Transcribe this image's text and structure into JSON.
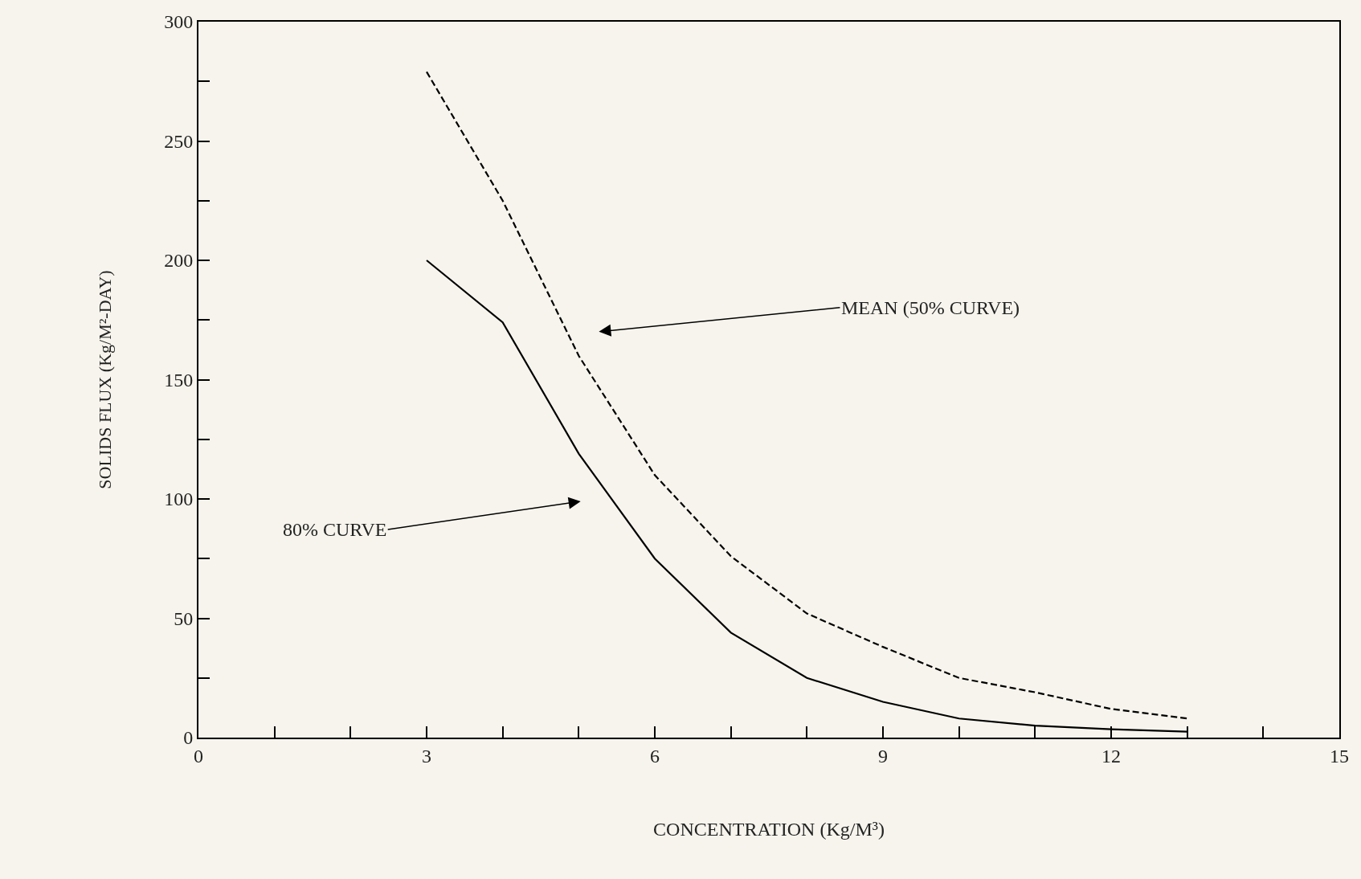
{
  "chart_data": {
    "type": "line",
    "xlabel": "CONCENTRATION (Kg/M³)",
    "ylabel": "SOLIDS FLUX (Kg/M²-DAY)",
    "x": [
      3,
      4,
      5,
      6,
      7,
      8,
      9,
      10,
      11,
      12,
      13
    ],
    "series": [
      {
        "color": "#000000",
        "line_style": "solid",
        "values": [
          200,
          174,
          119,
          75,
          44,
          25,
          15,
          8,
          5,
          3.5,
          2.5
        ]
      },
      {
        "color": "#000000",
        "line_style": "dashed",
        "values": [
          279,
          225,
          160,
          110,
          76,
          52,
          38,
          25,
          19,
          12,
          8
        ]
      }
    ],
    "xlim": [
      0,
      15
    ],
    "ylim": [
      0,
      300
    ],
    "xticks": [
      0,
      {
        "value": 1,
        "label": null
      },
      {
        "value": 2,
        "label": null
      },
      3,
      {
        "value": 4,
        "label": null
      },
      {
        "value": 5,
        "label": null
      },
      6,
      {
        "value": 7,
        "label": null
      },
      {
        "value": 8,
        "label": null
      },
      9,
      {
        "value": 10,
        "label": null
      },
      {
        "value": 11,
        "label": null
      },
      12,
      {
        "value": 13,
        "label": null
      },
      {
        "value": 14,
        "label": null
      },
      15
    ],
    "yticks": [
      0,
      {
        "value": 25,
        "label": null
      },
      50,
      {
        "value": 75,
        "label": null
      },
      100,
      {
        "value": 125,
        "label": null
      },
      150,
      {
        "value": 175,
        "label": null
      },
      200,
      {
        "value": 225,
        "label": null
      },
      250,
      {
        "value": 275,
        "label": null
      },
      300
    ],
    "annotations": [
      "MEAN (50% CURVE)",
      "80% CURVE"
    ],
    "grid": false,
    "marker": "none"
  }
}
